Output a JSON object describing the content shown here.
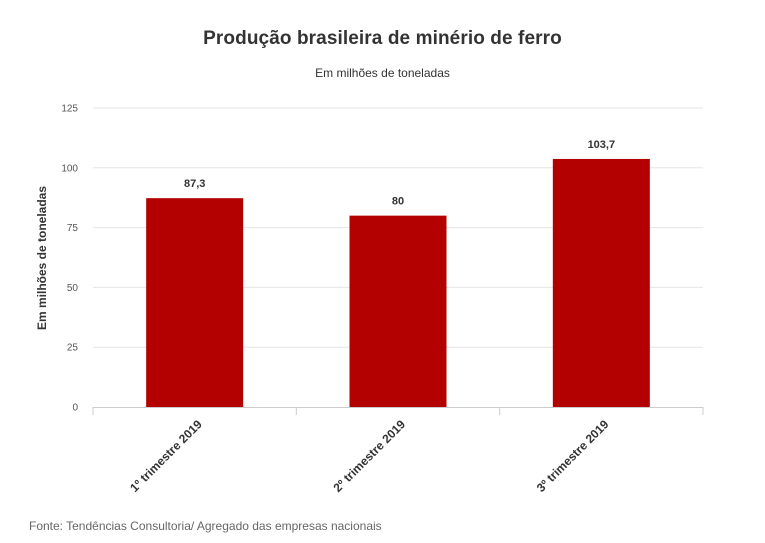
{
  "chart_data": {
    "type": "bar",
    "title": "Produção brasileira de minério de ferro",
    "subtitle": "Em milhões de toneladas",
    "ylabel": "Em milhões de toneladas",
    "xlabel": "",
    "categories": [
      "1º trimestre 2019",
      "2º trimestre 2019",
      "3º trimestre 2019"
    ],
    "values": [
      87.3,
      80,
      103.7
    ],
    "value_labels": [
      "87,3",
      "80",
      "103,7"
    ],
    "ylim": [
      0,
      125
    ],
    "yticks": [
      0,
      25,
      50,
      75,
      100,
      125
    ],
    "grid": true,
    "bar_color": "#b30000"
  },
  "source": "Fonte: Tendências Consultoria/ Agregado das empresas nacionais"
}
